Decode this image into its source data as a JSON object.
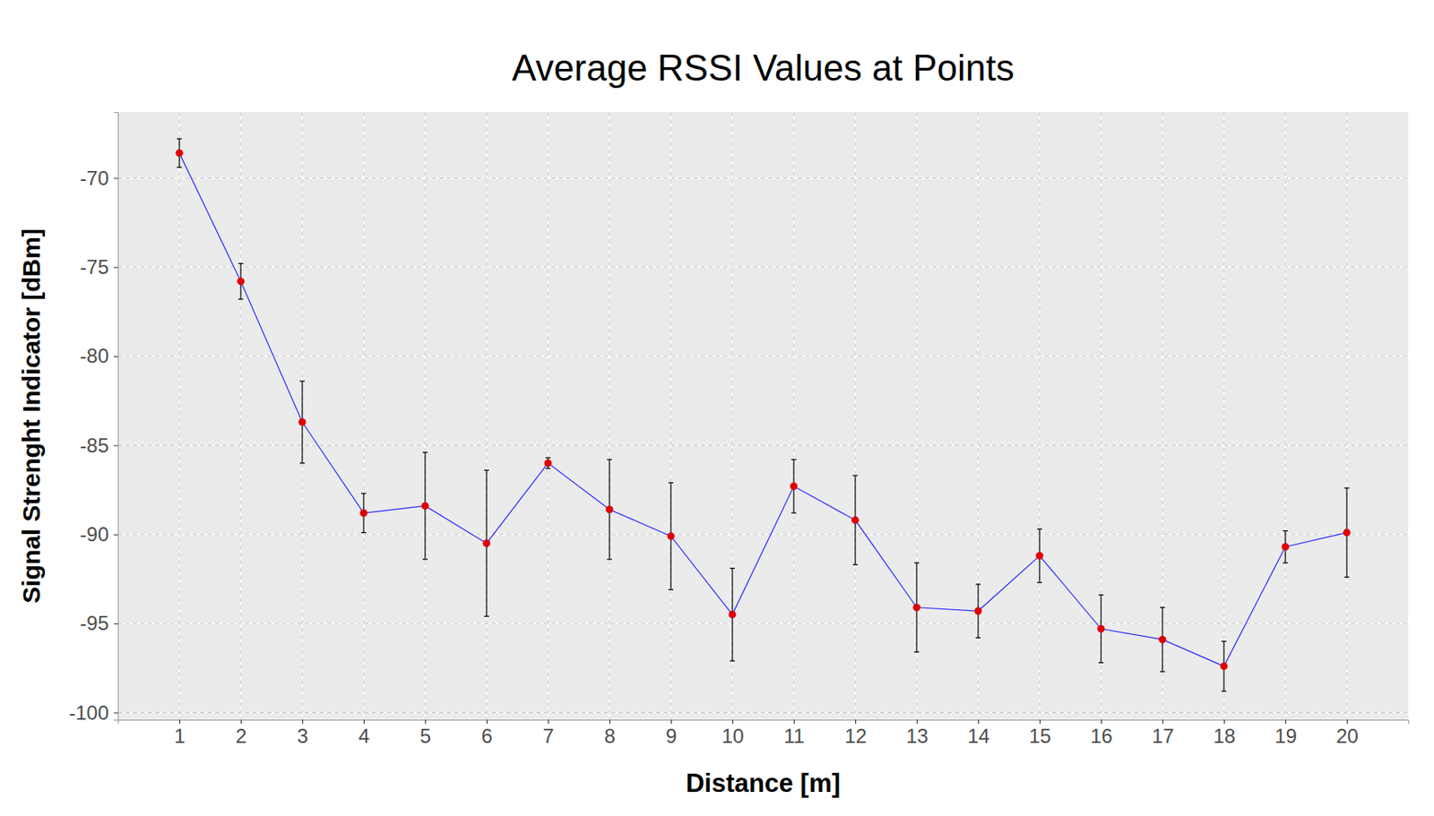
{
  "chart_data": {
    "type": "line",
    "title": "Average RSSI Values at Points",
    "x_label": "Distance [m]",
    "y_label": "Signal Strenght Indicator [dBm]",
    "x": [
      1,
      2,
      3,
      4,
      5,
      6,
      7,
      8,
      9,
      10,
      11,
      12,
      13,
      14,
      15,
      16,
      17,
      18,
      19,
      20
    ],
    "values": [
      -68.6,
      -75.8,
      -83.7,
      -88.8,
      -88.4,
      -90.5,
      -86.0,
      -88.6,
      -90.1,
      -94.5,
      -87.3,
      -89.2,
      -94.1,
      -94.3,
      -91.2,
      -95.3,
      -95.9,
      -97.4,
      -90.7,
      -89.9
    ],
    "errors": [
      0.8,
      1.0,
      2.3,
      1.1,
      3.0,
      4.1,
      0.3,
      2.8,
      3.0,
      2.6,
      1.5,
      2.5,
      2.5,
      1.5,
      1.5,
      1.9,
      1.8,
      1.4,
      0.9,
      2.5
    ],
    "color": "#2b2bff",
    "marker": "circle",
    "xlim": [
      0,
      21
    ],
    "xticks": [
      1,
      2,
      3,
      4,
      5,
      6,
      7,
      8,
      9,
      10,
      11,
      12,
      13,
      14,
      15,
      16,
      17,
      18,
      19,
      20
    ],
    "ylim": [
      -100.4,
      -66.3
    ],
    "yticks": [
      -100,
      -95,
      -90,
      -85,
      -80,
      -75,
      -70
    ],
    "grid": true
  }
}
